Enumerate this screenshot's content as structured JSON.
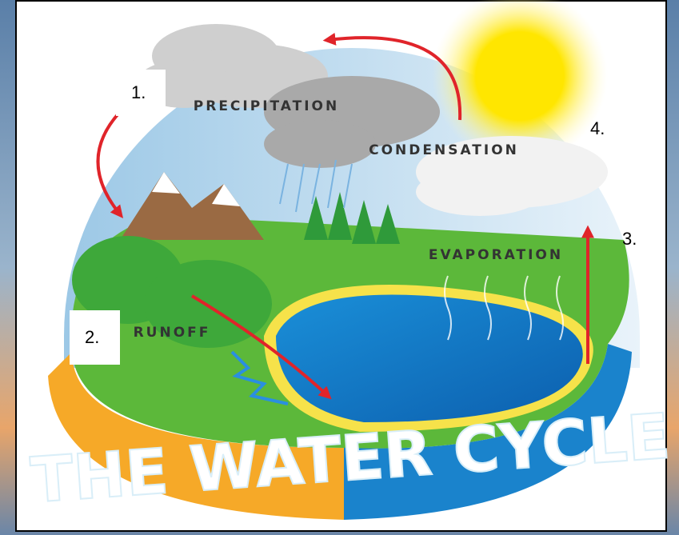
{
  "title": "THE WATER CYCLE",
  "stages": [
    {
      "label": "PRECIPITATION"
    },
    {
      "label": "CONDENSATION"
    },
    {
      "label": "EVAPORATION"
    },
    {
      "label": "RUNOFF"
    }
  ],
  "markers": [
    "1.",
    "2.",
    "3.",
    "4."
  ]
}
